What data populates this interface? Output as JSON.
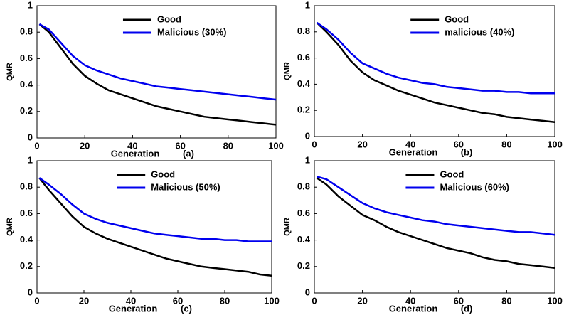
{
  "chart_data": [
    {
      "type": "line",
      "panel": "(a)",
      "xlabel": "Generation",
      "ylabel": "QMR",
      "xlim": [
        0,
        100
      ],
      "ylim": [
        0,
        1
      ],
      "xticks": [
        0,
        20,
        40,
        60,
        80,
        100
      ],
      "yticks": [
        0,
        0.2,
        0.4,
        0.6,
        0.8,
        1
      ],
      "x": [
        1,
        5,
        10,
        15,
        20,
        25,
        30,
        35,
        40,
        45,
        50,
        55,
        60,
        65,
        70,
        75,
        80,
        85,
        90,
        95,
        100
      ],
      "series": [
        {
          "name": "Good",
          "color": "#000000",
          "values": [
            0.86,
            0.8,
            0.68,
            0.56,
            0.47,
            0.41,
            0.36,
            0.33,
            0.3,
            0.27,
            0.24,
            0.22,
            0.2,
            0.18,
            0.16,
            0.15,
            0.14,
            0.13,
            0.12,
            0.11,
            0.1
          ]
        },
        {
          "name": "Malicious (30%)",
          "color": "#0000ee",
          "values": [
            0.86,
            0.82,
            0.72,
            0.62,
            0.55,
            0.51,
            0.48,
            0.45,
            0.43,
            0.41,
            0.39,
            0.38,
            0.37,
            0.36,
            0.35,
            0.34,
            0.33,
            0.32,
            0.31,
            0.3,
            0.29
          ]
        }
      ]
    },
    {
      "type": "line",
      "panel": "(b)",
      "xlabel": "Generation",
      "ylabel": "QMR",
      "xlim": [
        0,
        100
      ],
      "ylim": [
        0,
        1
      ],
      "xticks": [
        0,
        20,
        40,
        60,
        80,
        100
      ],
      "yticks": [
        0,
        0.2,
        0.4,
        0.6,
        0.8,
        1
      ],
      "x": [
        1,
        5,
        10,
        15,
        20,
        25,
        30,
        35,
        40,
        45,
        50,
        55,
        60,
        65,
        70,
        75,
        80,
        85,
        90,
        95,
        100
      ],
      "series": [
        {
          "name": "Good",
          "color": "#000000",
          "values": [
            0.87,
            0.8,
            0.7,
            0.58,
            0.49,
            0.43,
            0.39,
            0.35,
            0.32,
            0.29,
            0.26,
            0.24,
            0.22,
            0.2,
            0.18,
            0.17,
            0.15,
            0.14,
            0.13,
            0.12,
            0.11
          ]
        },
        {
          "name": "malicious (40%)",
          "color": "#0000ee",
          "values": [
            0.87,
            0.82,
            0.74,
            0.64,
            0.56,
            0.52,
            0.48,
            0.45,
            0.43,
            0.41,
            0.4,
            0.38,
            0.37,
            0.36,
            0.35,
            0.35,
            0.34,
            0.34,
            0.33,
            0.33,
            0.33
          ]
        }
      ]
    },
    {
      "type": "line",
      "panel": "(c)",
      "xlabel": "Generation",
      "ylabel": "QMR",
      "xlim": [
        0,
        100
      ],
      "ylim": [
        0,
        1
      ],
      "xticks": [
        0,
        20,
        40,
        60,
        80,
        100
      ],
      "yticks": [
        0,
        0.2,
        0.4,
        0.6,
        0.8,
        1
      ],
      "x": [
        1,
        5,
        10,
        15,
        20,
        25,
        30,
        35,
        40,
        45,
        50,
        55,
        60,
        65,
        70,
        75,
        80,
        85,
        90,
        95,
        100
      ],
      "series": [
        {
          "name": "Good",
          "color": "#000000",
          "values": [
            0.87,
            0.78,
            0.68,
            0.58,
            0.5,
            0.45,
            0.41,
            0.38,
            0.35,
            0.32,
            0.29,
            0.26,
            0.24,
            0.22,
            0.2,
            0.19,
            0.18,
            0.17,
            0.16,
            0.14,
            0.13
          ]
        },
        {
          "name": "Malicious (50%)",
          "color": "#0000ee",
          "values": [
            0.87,
            0.82,
            0.75,
            0.67,
            0.6,
            0.56,
            0.53,
            0.51,
            0.49,
            0.47,
            0.45,
            0.44,
            0.43,
            0.42,
            0.41,
            0.41,
            0.4,
            0.4,
            0.39,
            0.39,
            0.39
          ]
        }
      ]
    },
    {
      "type": "line",
      "panel": "(d)",
      "xlabel": "Generation",
      "ylabel": "QMR",
      "xlim": [
        0,
        100
      ],
      "ylim": [
        0,
        1
      ],
      "xticks": [
        0,
        20,
        40,
        60,
        80,
        100
      ],
      "yticks": [
        0,
        0.2,
        0.4,
        0.6,
        0.8,
        1
      ],
      "x": [
        1,
        5,
        10,
        15,
        20,
        25,
        30,
        35,
        40,
        45,
        50,
        55,
        60,
        65,
        70,
        75,
        80,
        85,
        90,
        95,
        100
      ],
      "series": [
        {
          "name": "Good",
          "color": "#000000",
          "values": [
            0.87,
            0.82,
            0.73,
            0.66,
            0.59,
            0.55,
            0.5,
            0.46,
            0.43,
            0.4,
            0.37,
            0.34,
            0.32,
            0.3,
            0.27,
            0.25,
            0.24,
            0.22,
            0.21,
            0.2,
            0.19
          ]
        },
        {
          "name": "Malicious (60%)",
          "color": "#0000ee",
          "values": [
            0.88,
            0.86,
            0.8,
            0.74,
            0.68,
            0.64,
            0.61,
            0.59,
            0.57,
            0.55,
            0.54,
            0.52,
            0.51,
            0.5,
            0.49,
            0.48,
            0.47,
            0.46,
            0.46,
            0.45,
            0.44
          ]
        }
      ]
    }
  ]
}
